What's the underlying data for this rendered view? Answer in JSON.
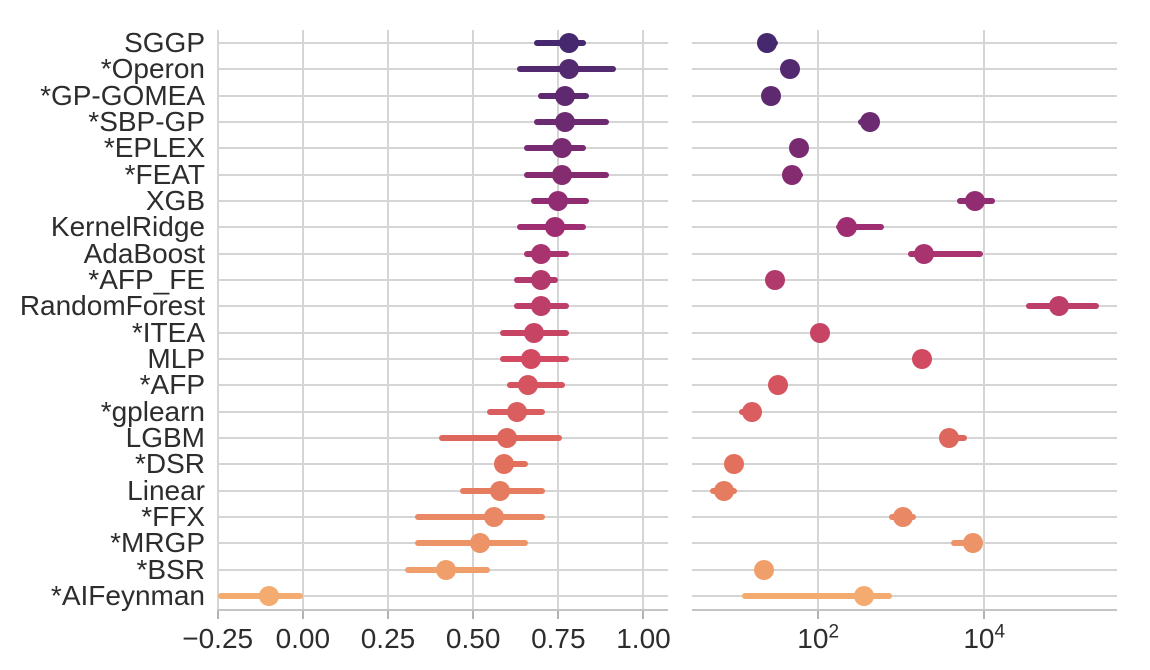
{
  "figure": {
    "background": "#ffffff",
    "text_color": "#2d2d2d",
    "grid_color": "#d5d5d5",
    "axis_line_color": "#c4c4c4",
    "tick_mark_color": "#b3b3b3"
  },
  "chart_data": {
    "type": "scatter",
    "subtype": "horizontal-dot-plot-with-error-bars",
    "title": "",
    "xlabel": "",
    "ylabel": "",
    "legend": "none",
    "grid": "major",
    "categories": [
      "SGGP",
      "*Operon",
      "*GP-GOMEA",
      "*SBP-GP",
      "*EPLEX",
      "*FEAT",
      "XGB",
      "KernelRidge",
      "AdaBoost",
      "*AFP_FE",
      "RandomForest",
      "*ITEA",
      "MLP",
      "*AFP",
      "*gplearn",
      "LGBM",
      "*DSR",
      "Linear",
      "*FFX",
      "*MRGP",
      "*BSR",
      "*AIFeynman"
    ],
    "point_colors": [
      "#46286F",
      "#53296F",
      "#5F2970",
      "#6C2A70",
      "#782B71",
      "#852C71",
      "#912C72",
      "#9E2D72",
      "#A8336F",
      "#B2396B",
      "#BD3E68",
      "#C74464",
      "#D14A61",
      "#D55460",
      "#DA5D5F",
      "#DE675D",
      "#E2705C",
      "#E57C60",
      "#E98864",
      "#EC9367",
      "#F09F6B",
      "#F3AB6F"
    ],
    "panels": [
      {
        "id": "left",
        "x_scale": "linear",
        "xlim": [
          -0.252,
          1.072
        ],
        "ticks": [
          {
            "value": -0.25,
            "label": "−0.25"
          },
          {
            "value": 0.0,
            "label": "0.00"
          },
          {
            "value": 0.25,
            "label": "0.25"
          },
          {
            "value": 0.5,
            "label": "0.50"
          },
          {
            "value": 0.75,
            "label": "0.75"
          },
          {
            "value": 1.0,
            "label": "1.00"
          }
        ],
        "series": [
          {
            "name": "median",
            "values": [
              0.78,
              0.78,
              0.77,
              0.77,
              0.76,
              0.76,
              0.75,
              0.74,
              0.7,
              0.7,
              0.7,
              0.68,
              0.67,
              0.66,
              0.63,
              0.6,
              0.59,
              0.58,
              0.56,
              0.52,
              0.42,
              -0.1
            ]
          },
          {
            "name": "err_lo",
            "values": [
              0.68,
              0.63,
              0.69,
              0.68,
              0.65,
              0.65,
              0.67,
              0.63,
              0.65,
              0.62,
              0.62,
              0.58,
              0.58,
              0.6,
              0.54,
              0.4,
              0.56,
              0.46,
              0.33,
              0.33,
              0.3,
              -0.25
            ]
          },
          {
            "name": "err_hi",
            "values": [
              0.83,
              0.92,
              0.84,
              0.9,
              0.83,
              0.9,
              0.84,
              0.83,
              0.78,
              0.75,
              0.78,
              0.78,
              0.78,
              0.77,
              0.71,
              0.76,
              0.66,
              0.71,
              0.71,
              0.66,
              0.55,
              0.0
            ]
          }
        ]
      },
      {
        "id": "right",
        "x_scale": "log10",
        "xlim_log10": [
          0.48,
          5.6
        ],
        "ticks": [
          {
            "value": 100,
            "label_base": "10",
            "label_exp": "2"
          },
          {
            "value": 10000,
            "label_base": "10",
            "label_exp": "4"
          }
        ],
        "series": [
          {
            "name": "median",
            "values": [
              24,
              46,
              27,
              420,
              59,
              48,
              7800,
              220,
              1900,
              30,
              80000,
              105,
              1800,
              33,
              16,
              3800,
              9.7,
              7.4,
              1050,
              7300,
              22,
              360
            ]
          },
          {
            "name": "err_lo",
            "values": [
              19,
              40,
              24,
              300,
              50,
              37,
              4700,
              165,
              1200,
              26,
              32000,
              95,
              1700,
              29,
              11,
              3000,
              8.8,
              5.0,
              720,
              4000,
              19,
              12
            ]
          },
          {
            "name": "err_hi",
            "values": [
              33,
              53,
              31,
              540,
              68,
              66,
              13500,
              620,
              9800,
              35,
              240000,
              118,
              2000,
              37,
              21,
              6200,
              10.7,
              10.6,
              1500,
              9500,
              25,
              780
            ]
          }
        ]
      }
    ]
  }
}
